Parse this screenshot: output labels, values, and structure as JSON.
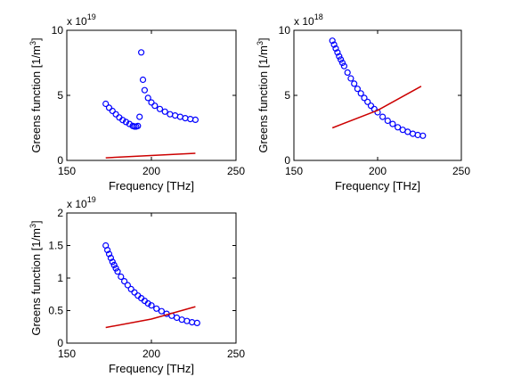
{
  "figure": {
    "background": "#ffffff",
    "marker_color": "#0000ff",
    "line_color": "#cc0000"
  },
  "chart_data": [
    {
      "type": "scatter",
      "xlabel": "Frequency [THz]",
      "ylabel_main": "Greens function [1/m",
      "ylabel_sup": "3",
      "ylabel_end": "]",
      "exponent_base": "x 10",
      "exponent_power": "19",
      "xlim": [
        150,
        250
      ],
      "ylim": [
        0,
        10
      ],
      "xticks": [
        "150",
        "200",
        "250"
      ],
      "yticks": [
        "0",
        "5",
        "10"
      ],
      "grid": false,
      "series": [
        {
          "kind": "markers",
          "x": [
            173,
            175,
            177,
            179,
            181,
            183,
            185,
            187,
            189,
            190,
            191,
            192,
            193,
            194,
            195,
            196,
            198,
            200,
            202,
            205,
            208,
            211,
            214,
            217,
            220,
            223,
            226
          ],
          "y": [
            4.35,
            4.05,
            3.8,
            3.55,
            3.3,
            3.1,
            2.95,
            2.8,
            2.65,
            2.6,
            2.6,
            2.65,
            3.35,
            8.3,
            6.2,
            5.4,
            4.8,
            4.45,
            4.2,
            3.95,
            3.75,
            3.55,
            3.45,
            3.35,
            3.25,
            3.18,
            3.12
          ]
        },
        {
          "kind": "line",
          "x": [
            173,
            226
          ],
          "y": [
            0.2,
            0.55
          ]
        }
      ]
    },
    {
      "type": "scatter",
      "xlabel": "Frequency [THz]",
      "ylabel_main": "Greens function [1/m",
      "ylabel_sup": "3",
      "ylabel_end": "]",
      "exponent_base": "x 10",
      "exponent_power": "18",
      "xlim": [
        150,
        250
      ],
      "ylim": [
        0,
        10
      ],
      "xticks": [
        "150",
        "200",
        "250"
      ],
      "yticks": [
        "0",
        "5",
        "10"
      ],
      "grid": false,
      "series": [
        {
          "kind": "markers",
          "x": [
            173,
            174,
            175,
            176,
            177,
            178,
            179,
            180,
            182,
            184,
            186,
            188,
            190,
            192,
            194,
            196,
            198,
            200,
            203,
            206,
            209,
            212,
            215,
            218,
            221,
            224,
            227
          ],
          "y": [
            9.2,
            8.9,
            8.6,
            8.3,
            8.0,
            7.75,
            7.5,
            7.25,
            6.75,
            6.3,
            5.9,
            5.5,
            5.15,
            4.8,
            4.5,
            4.2,
            3.95,
            3.7,
            3.35,
            3.05,
            2.8,
            2.55,
            2.35,
            2.2,
            2.05,
            1.95,
            1.9
          ]
        },
        {
          "kind": "line",
          "x": [
            173,
            200,
            226
          ],
          "y": [
            2.5,
            3.85,
            5.7
          ]
        }
      ]
    },
    {
      "type": "scatter",
      "xlabel": "Frequency [THz]",
      "ylabel_main": "Greens function [1/m",
      "ylabel_sup": "3",
      "ylabel_end": "]",
      "exponent_base": "x 10",
      "exponent_power": "19",
      "xlim": [
        150,
        250
      ],
      "ylim": [
        0,
        2
      ],
      "xticks": [
        "150",
        "200",
        "250"
      ],
      "yticks": [
        "0",
        "0.5",
        "1",
        "1.5",
        "2"
      ],
      "grid": false,
      "series": [
        {
          "kind": "markers",
          "x": [
            173,
            174,
            175,
            176,
            177,
            178,
            179,
            180,
            182,
            184,
            186,
            188,
            190,
            192,
            194,
            196,
            198,
            200,
            203,
            206,
            209,
            212,
            215,
            218,
            221,
            224,
            227
          ],
          "y": [
            1.5,
            1.43,
            1.37,
            1.31,
            1.25,
            1.2,
            1.15,
            1.1,
            1.02,
            0.95,
            0.89,
            0.83,
            0.78,
            0.73,
            0.69,
            0.65,
            0.61,
            0.58,
            0.53,
            0.49,
            0.45,
            0.42,
            0.39,
            0.36,
            0.34,
            0.32,
            0.31
          ]
        },
        {
          "kind": "line",
          "x": [
            173,
            200,
            226
          ],
          "y": [
            0.24,
            0.37,
            0.56
          ]
        }
      ]
    }
  ]
}
